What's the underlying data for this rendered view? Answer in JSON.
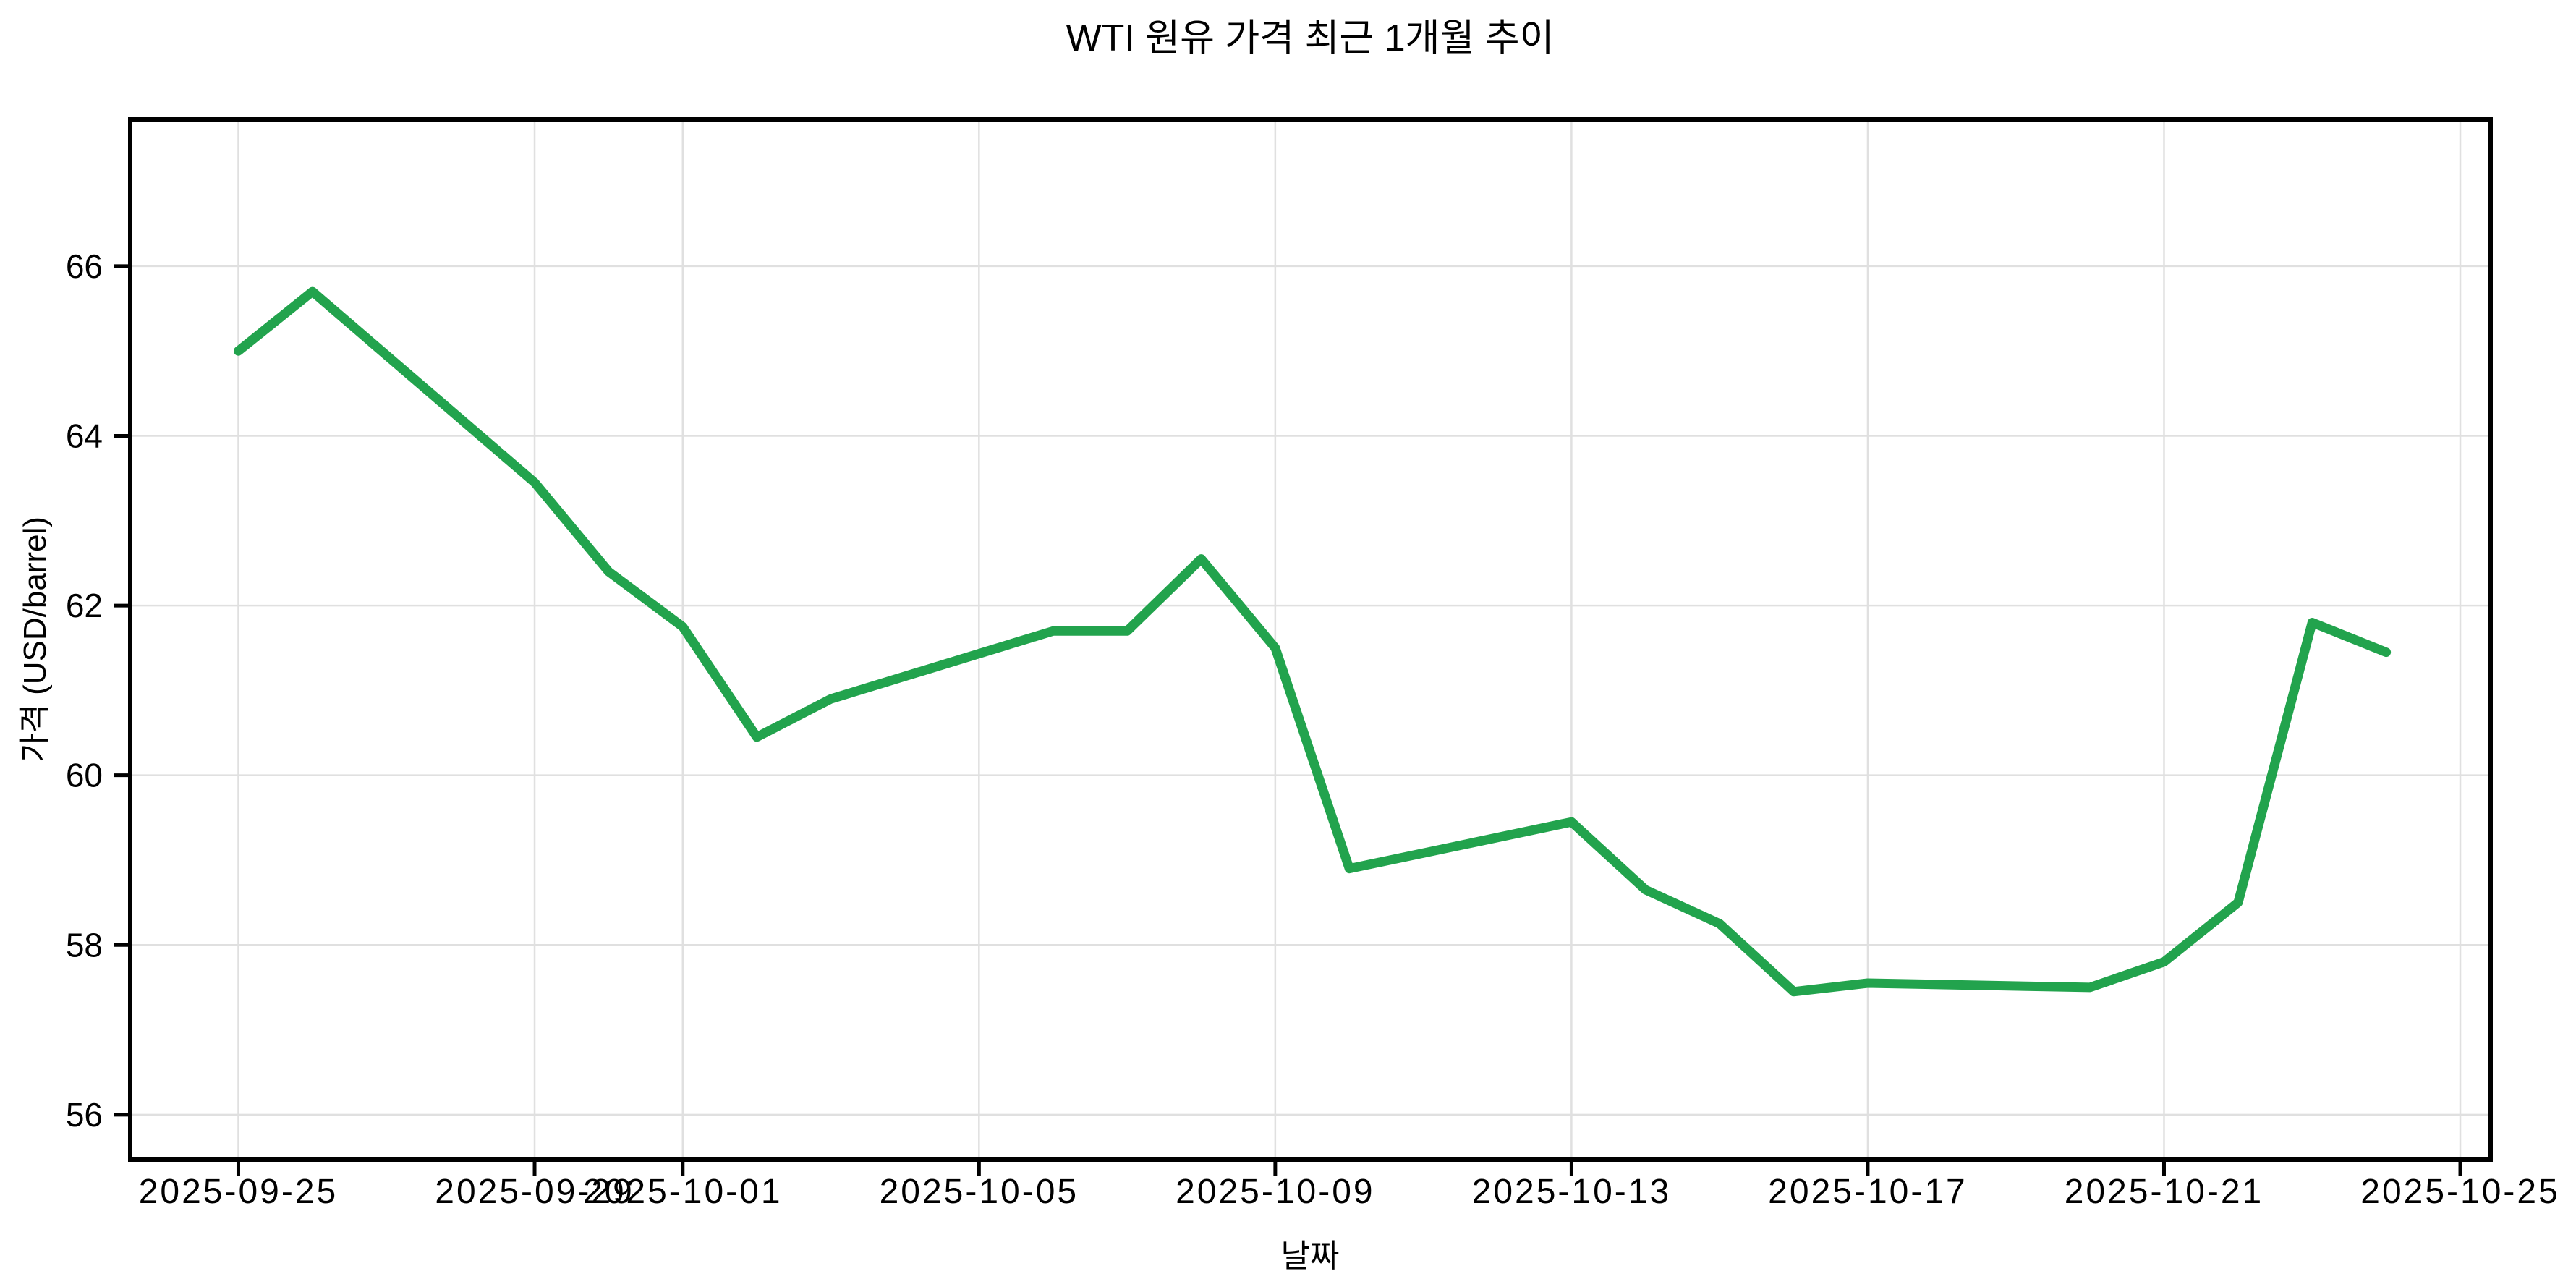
{
  "figure": {
    "background": "#ffffff"
  },
  "chart_data": {
    "type": "line",
    "title": "WTI 원유 가격 최근 1개월 추이",
    "xlabel": "날짜",
    "ylabel": "가격 (USD/barrel)",
    "x": [
      "2025-09-25",
      "2025-09-26",
      "2025-09-29",
      "2025-09-30",
      "2025-10-01",
      "2025-10-02",
      "2025-10-03",
      "2025-10-06",
      "2025-10-07",
      "2025-10-08",
      "2025-10-09",
      "2025-10-10",
      "2025-10-13",
      "2025-10-14",
      "2025-10-15",
      "2025-10-16",
      "2025-10-17",
      "2025-10-20",
      "2025-10-21",
      "2025-10-22",
      "2025-10-23",
      "2025-10-24"
    ],
    "y": [
      65.0,
      65.7,
      63.45,
      62.4,
      61.75,
      60.45,
      60.9,
      61.7,
      61.7,
      62.55,
      61.5,
      58.9,
      59.45,
      58.65,
      58.25,
      57.45,
      57.55,
      57.5,
      57.8,
      58.5,
      61.8,
      61.45
    ],
    "x_ticks": [
      "2025-09-25",
      "2025-09-29",
      "2025-10-01",
      "2025-10-05",
      "2025-10-09",
      "2025-10-13",
      "2025-10-17",
      "2025-10-21",
      "2025-10-25"
    ],
    "y_ticks": [
      56,
      58,
      60,
      62,
      64,
      66
    ],
    "xlim_days_offset": [
      -1.46,
      30.41
    ],
    "ylim": [
      55.47,
      67.73
    ],
    "grid": true,
    "legend": false,
    "colors": {
      "line": "#22a34d",
      "grid": "#e0e0e0",
      "spine": "#000000",
      "tick": "#000000",
      "background": "#ffffff"
    }
  }
}
